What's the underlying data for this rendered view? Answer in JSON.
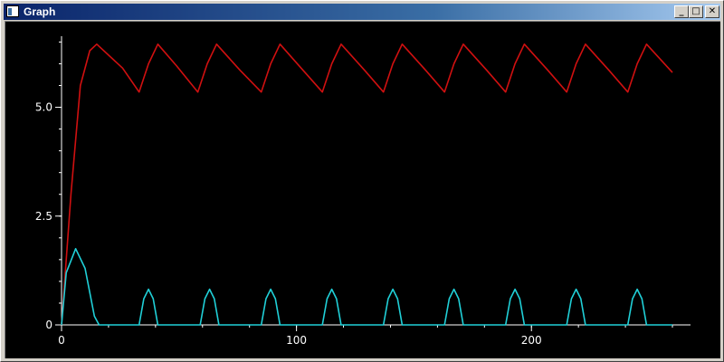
{
  "window": {
    "title": "Graph",
    "buttons": {
      "minimize": "_",
      "maximize": "□",
      "close": "✕"
    }
  },
  "chart_data": {
    "type": "line",
    "title": "",
    "xlabel": "",
    "ylabel": "",
    "xlim": [
      0,
      260
    ],
    "ylim": [
      0,
      6.8
    ],
    "x_ticks": [
      0,
      100,
      200
    ],
    "x_tick_labels": [
      "0",
      "100",
      "200"
    ],
    "y_ticks": [
      0,
      2.5,
      5.0
    ],
    "y_tick_labels": [
      "0",
      "2.5",
      "5.0"
    ],
    "grid": false,
    "legend": "none",
    "series": [
      {
        "color": "#d01010",
        "x": [
          0,
          4,
          8,
          12,
          15,
          26,
          33,
          37,
          41,
          49,
          58,
          62,
          66,
          76,
          85,
          89,
          93,
          102,
          111,
          115,
          119,
          129,
          137,
          141,
          145,
          155,
          163,
          167,
          171,
          181,
          189,
          193,
          197,
          207,
          215,
          219,
          223,
          233,
          241,
          245,
          249,
          260
        ],
        "y": [
          0.0,
          3.0,
          5.5,
          6.3,
          6.45,
          5.9,
          5.35,
          6.0,
          6.45,
          5.95,
          5.35,
          6.0,
          6.45,
          5.85,
          5.35,
          6.0,
          6.45,
          5.9,
          5.35,
          6.0,
          6.45,
          5.85,
          5.35,
          6.0,
          6.45,
          5.85,
          5.35,
          6.0,
          6.45,
          5.85,
          5.35,
          6.0,
          6.45,
          5.85,
          5.35,
          6.0,
          6.45,
          5.85,
          5.35,
          6.0,
          6.45,
          5.8
        ]
      },
      {
        "color": "#20d0d8",
        "x": [
          0,
          2,
          6,
          10,
          14,
          16,
          33,
          35,
          37,
          39,
          41,
          59,
          61,
          63,
          65,
          67,
          85,
          87,
          89,
          91,
          93,
          111,
          113,
          115,
          117,
          119,
          137,
          139,
          141,
          143,
          145,
          163,
          165,
          167,
          169,
          171,
          189,
          191,
          193,
          195,
          197,
          215,
          217,
          219,
          221,
          223,
          241,
          243,
          245,
          247,
          249,
          260
        ],
        "y": [
          0.0,
          1.2,
          1.75,
          1.3,
          0.2,
          0.0,
          0.0,
          0.6,
          0.82,
          0.6,
          0.0,
          0.0,
          0.6,
          0.82,
          0.6,
          0.0,
          0.0,
          0.6,
          0.82,
          0.6,
          0.0,
          0.0,
          0.6,
          0.82,
          0.6,
          0.0,
          0.0,
          0.6,
          0.82,
          0.6,
          0.0,
          0.0,
          0.6,
          0.82,
          0.6,
          0.0,
          0.0,
          0.6,
          0.82,
          0.6,
          0.0,
          0.0,
          0.6,
          0.82,
          0.6,
          0.0,
          0.0,
          0.6,
          0.82,
          0.6,
          0.0,
          0.0
        ]
      }
    ]
  }
}
